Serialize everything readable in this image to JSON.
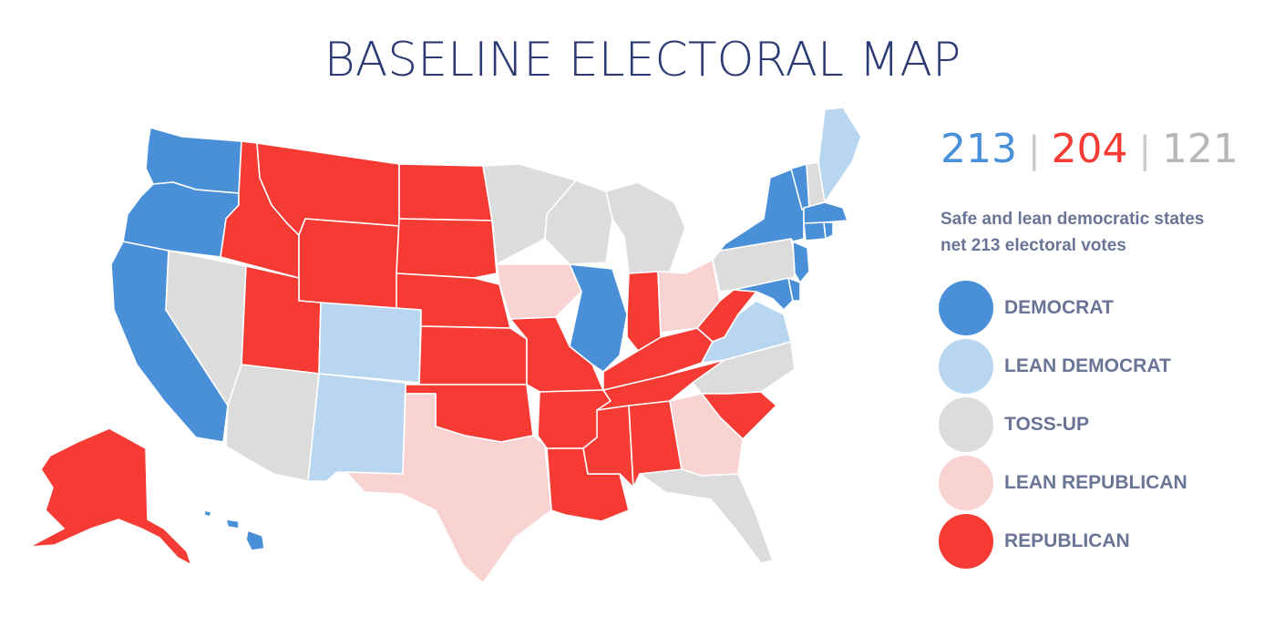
{
  "title": "BASELINE ELECTORAL MAP",
  "tally": {
    "dem": "213",
    "rep": "204",
    "toss": "121",
    "separator": "|"
  },
  "summary": {
    "line1": "Safe and lean democratic states",
    "line2": "net 213 electoral votes"
  },
  "colors": {
    "democrat": "#4a90d9",
    "lean_democrat": "#b9d6f0",
    "toss_up": "#dcdcdc",
    "lean_republican": "#f9d2d2",
    "republican": "#f53b34",
    "title": "#2c3a73",
    "legend_text": "#6a7596"
  },
  "legend": [
    {
      "category": "democrat",
      "label": "DEMOCRAT"
    },
    {
      "category": "lean_democrat",
      "label": "LEAN DEMOCRAT"
    },
    {
      "category": "toss_up",
      "label": "TOSS-UP"
    },
    {
      "category": "lean_republican",
      "label": "LEAN REPUBLICAN"
    },
    {
      "category": "republican",
      "label": "REPUBLICAN"
    }
  ],
  "states": {
    "WA": "democrat",
    "OR": "democrat",
    "CA": "democrat",
    "IL": "democrat",
    "NY": "democrat",
    "VT": "democrat",
    "MA": "democrat",
    "CT": "democrat",
    "RI": "democrat",
    "NJ": "democrat",
    "DE": "democrat",
    "MD": "democrat",
    "HI": "democrat",
    "ME": "lean_democrat",
    "CO": "lean_democrat",
    "NM": "lean_democrat",
    "VA": "lean_democrat",
    "NV": "toss_up",
    "AZ": "toss_up",
    "MN": "toss_up",
    "WI": "toss_up",
    "MI": "toss_up",
    "PA": "toss_up",
    "NH": "toss_up",
    "NC": "toss_up",
    "FL": "toss_up",
    "IA": "lean_republican",
    "OH": "lean_republican",
    "TX": "lean_republican",
    "GA": "lean_republican",
    "ID": "republican",
    "MT": "republican",
    "WY": "republican",
    "UT": "republican",
    "ND": "republican",
    "SD": "republican",
    "NE": "republican",
    "KS": "republican",
    "OK": "republican",
    "MO": "republican",
    "AR": "republican",
    "LA": "republican",
    "MS": "republican",
    "AL": "republican",
    "TN": "republican",
    "KY": "republican",
    "IN": "republican",
    "WV": "republican",
    "SC": "republican",
    "AK": "republican"
  }
}
